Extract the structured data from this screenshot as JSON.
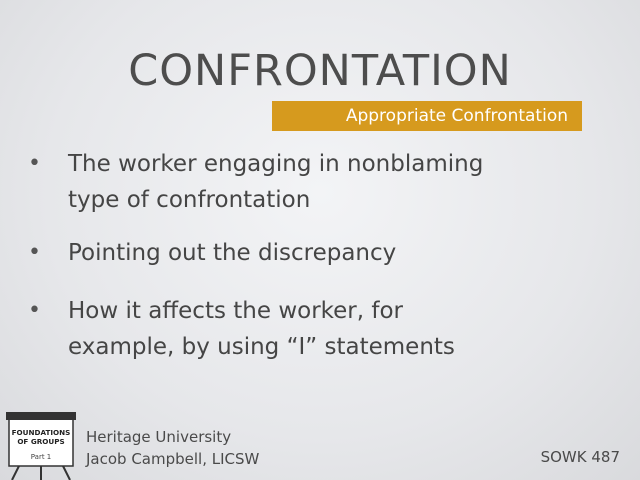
{
  "slide": {
    "title": "CONFRONTATION",
    "subtitle": "Appropriate Confrontation",
    "bullets": [
      {
        "line1": "The worker engaging in nonblaming",
        "line2": "type of confrontation"
      },
      {
        "line1": "Pointing out the discrepancy"
      },
      {
        "line1": "How it affects the worker, for",
        "line2": "example, by using “I” statements"
      }
    ],
    "bullet_glyph": "•"
  },
  "logo": {
    "line1": "FOUNDATIONS",
    "line2": "OF GROUPS",
    "part": "Part 1"
  },
  "footer": {
    "institution": "Heritage University",
    "presenter": "Jacob Campbell, LICSW",
    "course": "SOWK 487"
  },
  "colors": {
    "accent": "#d69a1e",
    "text": "#4a4a4a"
  }
}
